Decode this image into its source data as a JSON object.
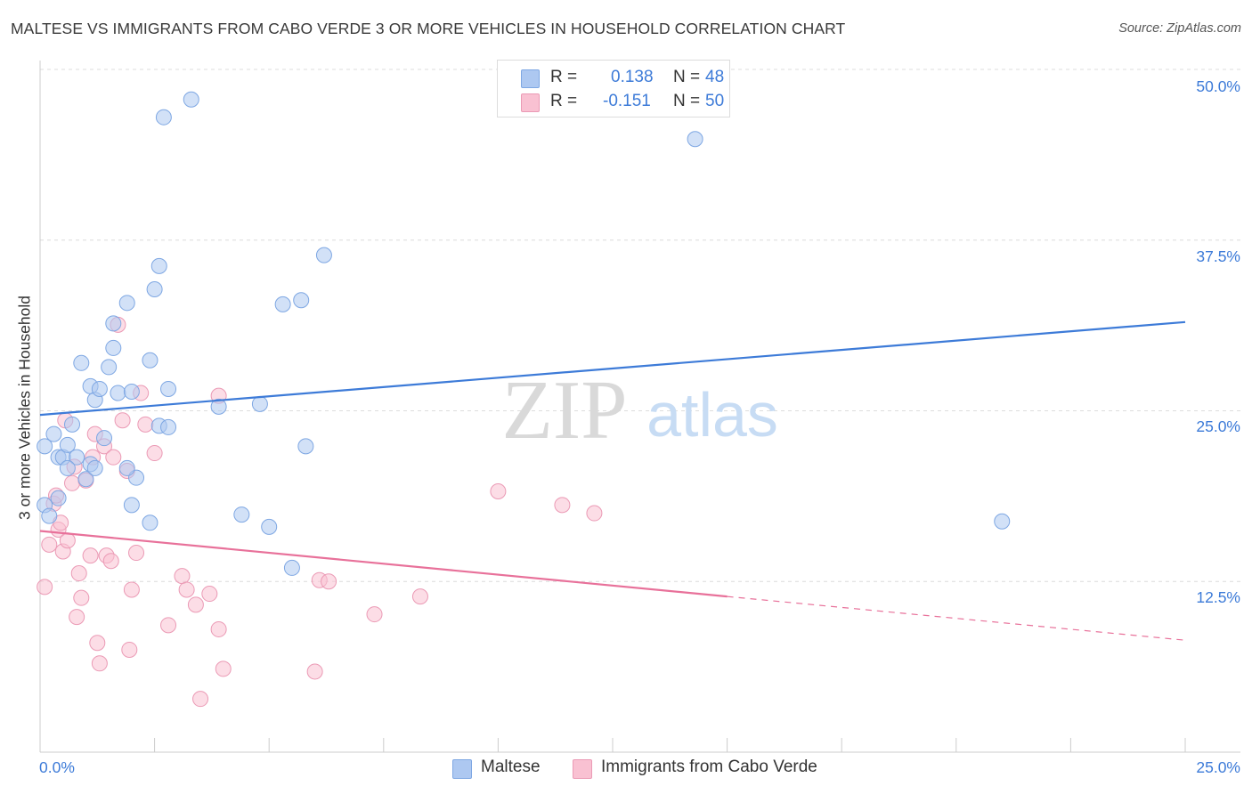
{
  "title": "MALTESE VS IMMIGRANTS FROM CABO VERDE 3 OR MORE VEHICLES IN HOUSEHOLD CORRELATION CHART",
  "source": "Source: ZipAtlas.com",
  "watermark": {
    "zip": "ZIP",
    "atlas": "atlas"
  },
  "legend": {
    "rows": [
      {
        "r_label": "R =",
        "r_value": "0.138",
        "n_label": "N =",
        "n_value": "48",
        "color": "#adc8f1"
      },
      {
        "r_label": "R =",
        "r_value": "-0.151",
        "n_label": "N =",
        "n_value": "50",
        "color": "#f9c1d2"
      }
    ]
  },
  "bottom_legend": [
    {
      "label": "Maltese",
      "color": "#adc8f1"
    },
    {
      "label": "Immigrants from Cabo Verde",
      "color": "#f9c1d2"
    }
  ],
  "axis": {
    "ylabel": "3 or more Vehicles in Household",
    "yticks": [
      "50.0%",
      "37.5%",
      "25.0%",
      "12.5%"
    ],
    "xticks": [
      "0.0%",
      "25.0%"
    ]
  },
  "chart_data": {
    "type": "scatter",
    "xlim": [
      0,
      25
    ],
    "ylim": [
      0,
      50
    ],
    "xlabel": "",
    "ylabel": "3 or more Vehicles in Household",
    "grid": true,
    "colors": {
      "maltese": "#3d7bd8",
      "cabo_verde": "#e8719a",
      "maltese_fill": "#adc8f1",
      "cabo_fill": "#f9c1d2"
    },
    "series": [
      {
        "name": "Maltese",
        "trend": {
          "x": [
            0,
            25
          ],
          "y": [
            24.7,
            31.5
          ],
          "dashed_from": null
        },
        "points": [
          [
            0.1,
            22.4
          ],
          [
            0.3,
            23.3
          ],
          [
            0.4,
            21.6
          ],
          [
            0.5,
            21.6
          ],
          [
            0.6,
            22.5
          ],
          [
            0.7,
            24.0
          ],
          [
            0.8,
            21.6
          ],
          [
            0.9,
            28.5
          ],
          [
            1.0,
            20.0
          ],
          [
            1.1,
            21.1
          ],
          [
            1.1,
            26.8
          ],
          [
            1.2,
            25.8
          ],
          [
            1.3,
            26.6
          ],
          [
            1.4,
            23.0
          ],
          [
            1.5,
            28.2
          ],
          [
            1.6,
            31.4
          ],
          [
            1.6,
            29.6
          ],
          [
            1.7,
            26.3
          ],
          [
            1.9,
            32.9
          ],
          [
            2.0,
            26.4
          ],
          [
            2.0,
            18.1
          ],
          [
            2.1,
            20.1
          ],
          [
            2.4,
            28.7
          ],
          [
            2.4,
            16.8
          ],
          [
            2.5,
            33.9
          ],
          [
            2.6,
            23.9
          ],
          [
            2.6,
            35.6
          ],
          [
            2.7,
            46.5
          ],
          [
            2.8,
            23.8
          ],
          [
            2.8,
            26.6
          ],
          [
            3.3,
            47.8
          ],
          [
            3.9,
            25.3
          ],
          [
            4.4,
            17.4
          ],
          [
            4.8,
            25.5
          ],
          [
            5.0,
            16.5
          ],
          [
            5.3,
            32.8
          ],
          [
            5.7,
            33.1
          ],
          [
            5.5,
            13.5
          ],
          [
            5.8,
            22.4
          ],
          [
            6.2,
            36.4
          ],
          [
            14.3,
            44.9
          ],
          [
            21.0,
            16.9
          ],
          [
            0.1,
            18.1
          ],
          [
            0.2,
            17.3
          ],
          [
            0.4,
            18.6
          ],
          [
            0.6,
            20.8
          ],
          [
            1.2,
            20.8
          ],
          [
            1.9,
            20.8
          ]
        ]
      },
      {
        "name": "Immigrants from Cabo Verde",
        "trend": {
          "x": [
            0,
            15,
            25
          ],
          "y": [
            16.2,
            11.4,
            8.2
          ],
          "dashed_from": 15
        },
        "points": [
          [
            0.1,
            12.1
          ],
          [
            0.2,
            15.2
          ],
          [
            0.3,
            18.2
          ],
          [
            0.35,
            18.8
          ],
          [
            0.4,
            16.3
          ],
          [
            0.45,
            16.8
          ],
          [
            0.5,
            14.7
          ],
          [
            0.55,
            24.3
          ],
          [
            0.6,
            15.5
          ],
          [
            0.7,
            19.7
          ],
          [
            0.75,
            20.9
          ],
          [
            0.8,
            9.9
          ],
          [
            0.85,
            13.1
          ],
          [
            0.9,
            11.3
          ],
          [
            1.0,
            19.9
          ],
          [
            1.1,
            14.4
          ],
          [
            1.15,
            21.6
          ],
          [
            1.2,
            23.3
          ],
          [
            1.25,
            8.0
          ],
          [
            1.3,
            6.5
          ],
          [
            1.4,
            22.4
          ],
          [
            1.45,
            14.4
          ],
          [
            1.55,
            14.0
          ],
          [
            1.6,
            21.6
          ],
          [
            1.7,
            31.3
          ],
          [
            1.8,
            24.3
          ],
          [
            1.9,
            20.6
          ],
          [
            1.95,
            7.5
          ],
          [
            2.0,
            11.9
          ],
          [
            2.1,
            14.6
          ],
          [
            2.2,
            26.3
          ],
          [
            2.3,
            24.0
          ],
          [
            2.5,
            21.9
          ],
          [
            2.8,
            9.3
          ],
          [
            3.1,
            12.9
          ],
          [
            3.2,
            11.9
          ],
          [
            3.4,
            10.8
          ],
          [
            3.5,
            3.9
          ],
          [
            3.7,
            11.6
          ],
          [
            3.9,
            9.0
          ],
          [
            3.9,
            26.1
          ],
          [
            4.0,
            6.1
          ],
          [
            6.0,
            5.9
          ],
          [
            6.1,
            12.6
          ],
          [
            6.3,
            12.5
          ],
          [
            7.3,
            10.1
          ],
          [
            8.3,
            11.4
          ],
          [
            10.0,
            19.1
          ],
          [
            11.4,
            18.1
          ],
          [
            12.1,
            17.5
          ]
        ]
      }
    ]
  }
}
